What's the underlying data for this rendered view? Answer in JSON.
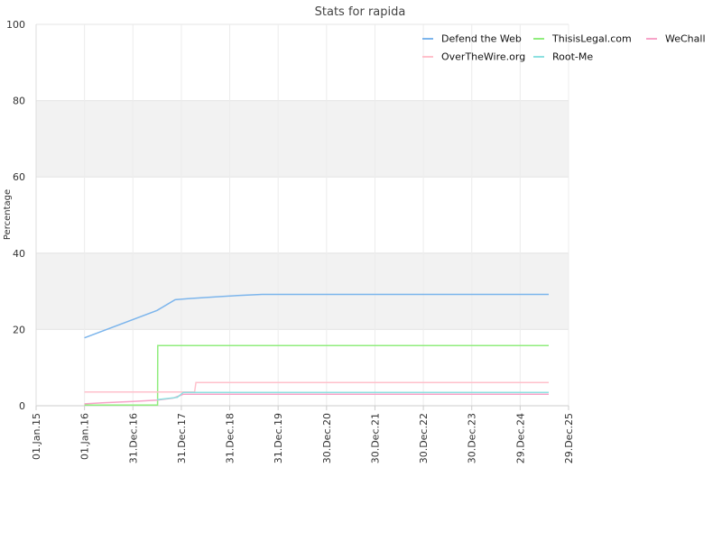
{
  "chart_data": {
    "type": "line",
    "title": "Stats for rapida",
    "ylabel": "Percentage",
    "xlabel": "",
    "ylim": [
      0,
      100
    ],
    "yticks": [
      0,
      20,
      40,
      60,
      80,
      100
    ],
    "xlim": [
      "2015-01-01",
      "2025-12-29"
    ],
    "xticks": [
      {
        "label": "01.Jan.15",
        "date": "2015-01-01"
      },
      {
        "label": "01.Jan.16",
        "date": "2016-01-01"
      },
      {
        "label": "31.Dec.16",
        "date": "2016-12-31"
      },
      {
        "label": "31.Dec.17",
        "date": "2017-12-31"
      },
      {
        "label": "31.Dec.18",
        "date": "2018-12-31"
      },
      {
        "label": "31.Dec.19",
        "date": "2019-12-31"
      },
      {
        "label": "30.Dec.20",
        "date": "2020-12-30"
      },
      {
        "label": "30.Dec.21",
        "date": "2021-12-30"
      },
      {
        "label": "30.Dec.22",
        "date": "2022-12-30"
      },
      {
        "label": "30.Dec.23",
        "date": "2023-12-30"
      },
      {
        "label": "29.Dec.24",
        "date": "2024-12-29"
      },
      {
        "label": "29.Dec.25",
        "date": "2025-12-29"
      }
    ],
    "grid": true,
    "alternating_bands": true,
    "band_color": "#f2f2f2",
    "legend_position": "top-right",
    "series": [
      {
        "name": "Defend the Web",
        "color": "#7cb5ec",
        "points": [
          [
            "2016-01-01",
            17.8
          ],
          [
            "2017-07-01",
            25.0
          ],
          [
            "2017-11-15",
            27.8
          ],
          [
            "2018-03-01",
            28.1
          ],
          [
            "2018-09-01",
            28.5
          ],
          [
            "2019-03-01",
            28.9
          ],
          [
            "2019-09-01",
            29.2
          ],
          [
            "2025-08-01",
            29.2
          ]
        ]
      },
      {
        "name": "ThisisLegal.com",
        "color": "#90ed7d",
        "points": [
          [
            "2016-01-01",
            0.2
          ],
          [
            "2017-07-05",
            0.2
          ],
          [
            "2017-07-06",
            15.8
          ],
          [
            "2025-08-01",
            15.8
          ]
        ]
      },
      {
        "name": "WeChall",
        "color": "#f7a3c8",
        "points": [
          [
            "2016-01-01",
            0.5
          ],
          [
            "2016-06-01",
            0.8
          ],
          [
            "2017-01-01",
            1.1
          ],
          [
            "2017-07-01",
            1.5
          ],
          [
            "2017-11-01",
            2.0
          ],
          [
            "2018-01-15",
            3.0
          ],
          [
            "2025-08-01",
            3.0
          ]
        ]
      },
      {
        "name": "OverTheWire.org",
        "color": "#ffc0cb",
        "points": [
          [
            "2016-01-01",
            3.6
          ],
          [
            "2018-04-10",
            3.6
          ],
          [
            "2018-04-20",
            6.1
          ],
          [
            "2025-08-01",
            6.1
          ]
        ]
      },
      {
        "name": "Root-Me",
        "color": "#8ce0e0",
        "points": [
          [
            "2017-07-01",
            1.6
          ],
          [
            "2017-12-01",
            2.2
          ],
          [
            "2018-01-15",
            3.5
          ],
          [
            "2025-08-01",
            3.5
          ]
        ]
      }
    ]
  }
}
